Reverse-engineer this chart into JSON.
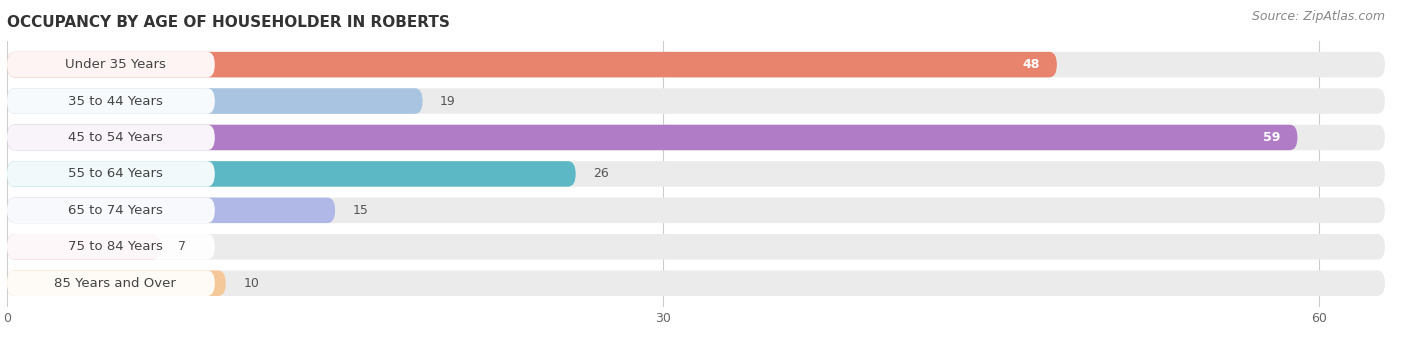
{
  "title": "OCCUPANCY BY AGE OF HOUSEHOLDER IN ROBERTS",
  "source": "Source: ZipAtlas.com",
  "categories": [
    "Under 35 Years",
    "35 to 44 Years",
    "45 to 54 Years",
    "55 to 64 Years",
    "65 to 74 Years",
    "75 to 84 Years",
    "85 Years and Over"
  ],
  "values": [
    48,
    19,
    59,
    26,
    15,
    7,
    10
  ],
  "colors": [
    "#E8836E",
    "#A8C4E0",
    "#B07CC6",
    "#5BB8C4",
    "#B0B8E8",
    "#F0A8C0",
    "#F5C89A"
  ],
  "xlim_max": 63,
  "xticks": [
    0,
    30,
    60
  ],
  "bg_color": "#ffffff",
  "bar_track_color": "#ebebeb",
  "title_fontsize": 11,
  "source_fontsize": 9,
  "label_fontsize": 9.5,
  "value_fontsize": 9
}
